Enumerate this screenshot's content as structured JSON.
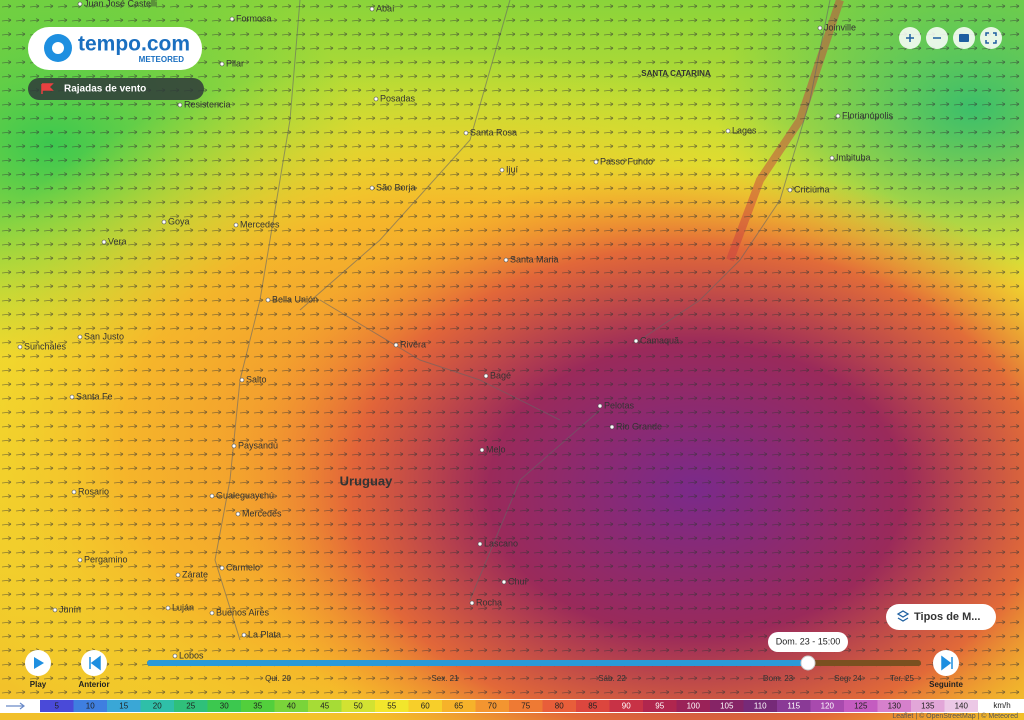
{
  "brand": {
    "name": "tempo.com",
    "sub": "METEORED"
  },
  "layer": "Rajadas de vento",
  "region_labels": [
    "Uruguay",
    "SANTA CATARINA"
  ],
  "places": [
    "Juan José Castelli",
    "Formosa",
    "Abaí",
    "Pilar",
    "Resistencia",
    "Posadas",
    "Santa Rosa",
    "Passo Fundo",
    "Lages",
    "Joinville",
    "Florianópolis",
    "Imbituba",
    "Criciúma",
    "Ijuí",
    "São Borja",
    "Goya",
    "Mercedes",
    "Vera",
    "Santa Maria",
    "Bella Unión",
    "San Justo",
    "Sunchales",
    "Rivera",
    "Camaquã",
    "Salto",
    "Bagé",
    "Santa Fe",
    "Pelotas",
    "Rio Grande",
    "Paysandú",
    "Melo",
    "Rosario",
    "Gualeguaychú",
    "Mercedes",
    "Pergamino",
    "Lascano",
    "Chuí",
    "Rocha",
    "Carmelo",
    "Zárate",
    "Luján",
    "Buenos Aires",
    "La Plata",
    "Junín",
    "Lobos"
  ],
  "timeline": {
    "current": "Dom. 23 - 15:00",
    "days": [
      "Qui. 20",
      "Sex. 21",
      "Sáb. 22",
      "Dom. 23",
      "Seg. 24",
      "Ter. 25"
    ],
    "play": "Play",
    "previous": "Anterior",
    "next": "Seguinte"
  },
  "layer_menu": "Tipos de M...",
  "legend": {
    "values": [
      5,
      10,
      15,
      20,
      25,
      30,
      35,
      40,
      45,
      50,
      55,
      60,
      65,
      70,
      75,
      80,
      85,
      90,
      95,
      100,
      105,
      110,
      115,
      120,
      125,
      130,
      135,
      140
    ],
    "colors": [
      "#4a4ad8",
      "#3f7fe0",
      "#3aa7d6",
      "#2fbfa8",
      "#2fc07a",
      "#3cc84f",
      "#52cf3c",
      "#7ad43a",
      "#a6dc36",
      "#d2e232",
      "#f2e62c",
      "#f7cf2a",
      "#f6b22a",
      "#f39530",
      "#ee7a34",
      "#e85e3a",
      "#dc463e",
      "#c83246",
      "#b0264e",
      "#9a2258",
      "#862466",
      "#762a78",
      "#8a3a96",
      "#a84aae",
      "#c45cc0",
      "#d680cc",
      "#e2a6d8",
      "#ecc8e6"
    ],
    "unit": "km/h"
  },
  "attribution": "Leaflet | © OpenStreetMap | © Meteored"
}
